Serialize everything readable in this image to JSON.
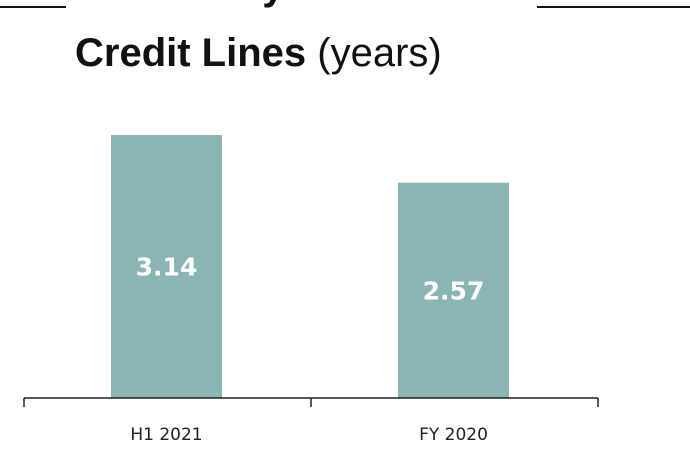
{
  "title": {
    "line1": "Av. Maturity and/atm.",
    "line2_bold": "Credit Lines",
    "line2_rest": " (years)"
  },
  "colors": {
    "bar": "#8bb5b5",
    "axis": "#222222",
    "label_on_bar": "#ffffff"
  },
  "chart_data": {
    "type": "bar",
    "categories": [
      "H1 2021",
      "FY 2020"
    ],
    "values": [
      3.14,
      2.57
    ],
    "value_labels": [
      "3.14",
      "2.57"
    ],
    "xlabel": "",
    "ylabel": "",
    "ylim": [
      0,
      3.14
    ],
    "grid": false,
    "legend": "none"
  }
}
